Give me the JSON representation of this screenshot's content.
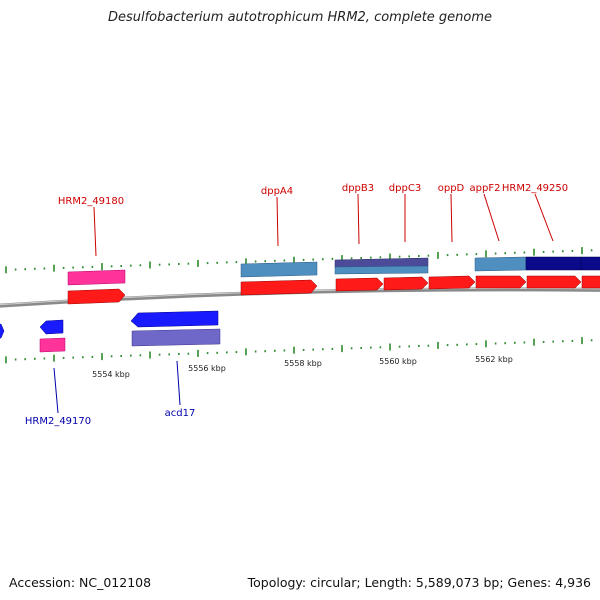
{
  "title": "Desulfobacterium autotrophicum HRM2, complete genome",
  "footer": {
    "accession": "Accession: NC_012108",
    "summary": "Topology: circular; Length: 5,589,073 bp; Genes: 4,936"
  },
  "colors": {
    "backbone": "#8a8a8a",
    "tick": "#2e8b2e",
    "label_forward": "#cc0000",
    "label_reverse": "#0000aa",
    "cds": "#ff1a1a",
    "gene_pink": "#ff3399",
    "gene_blue": "#1a1aff",
    "gene_steel": "#4f8fc0",
    "gene_purple": "#4b4b9a",
    "gene_navy": "#0a0a8a",
    "gene_lavender": "#7068c8"
  },
  "scale_labels": [
    "5554 kbp",
    "5556 kbp",
    "5558 kbp",
    "5560 kbp",
    "5562 kbp"
  ],
  "gene_labels": {
    "forward": [
      "HRM2_49180",
      "dppA4",
      "dppB3",
      "dppC3",
      "oppD",
      "appF2",
      "HRM2_49250"
    ],
    "reverse": [
      "HRM2_49170",
      "acd17"
    ]
  }
}
